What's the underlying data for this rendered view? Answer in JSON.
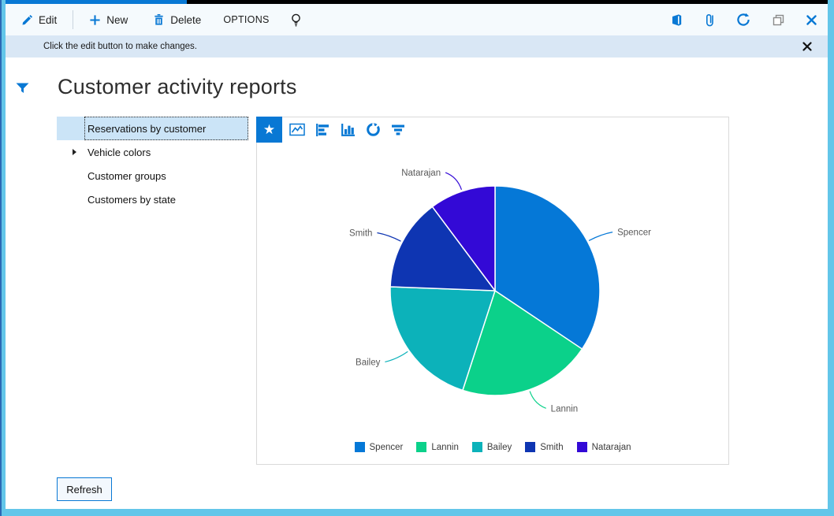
{
  "colors": {
    "accent": "#0878d4",
    "window_border": "#63c6e9",
    "top_strip_blue": "#0878d4",
    "top_strip_black": "#000000",
    "toolbar_bg": "#f5fafd",
    "infobar_bg": "#d9e7f5",
    "selected_row_bg": "#cbe4f7"
  },
  "toolbar": {
    "edit_label": "Edit",
    "new_label": "New",
    "delete_label": "Delete",
    "options_label": "OPTIONS",
    "left_icons": [
      "pencil-icon",
      "plus-icon",
      "trash-icon",
      "lightbulb-icon"
    ],
    "right_icons": [
      "office-icon",
      "paperclip-icon",
      "refresh-icon",
      "restore-window-icon",
      "close-icon"
    ]
  },
  "notification": {
    "message": "Click the edit button to make changes.",
    "close_icon": "close-icon"
  },
  "page": {
    "title": "Customer activity reports",
    "filter_icon": "filter-funnel-icon"
  },
  "report_list": {
    "items": [
      {
        "label": "Reservations by customer",
        "selected": true,
        "expandable": false
      },
      {
        "label": "Vehicle colors",
        "selected": false,
        "expandable": true
      },
      {
        "label": "Customer groups",
        "selected": false,
        "expandable": false
      },
      {
        "label": "Customers by state",
        "selected": false,
        "expandable": false
      }
    ]
  },
  "chart_toolbar": {
    "icons": [
      "favorite-star-icon",
      "line-chart-icon",
      "bar-chart-icon",
      "column-chart-icon",
      "donut-chart-icon",
      "funnel-chart-icon"
    ],
    "selected": "favorite-star-icon",
    "star_glyph": "★"
  },
  "chart_data": {
    "type": "pie",
    "title": "Reservations by customer",
    "series": [
      {
        "name": "Spencer",
        "value": 34.4,
        "color": "#0578d7"
      },
      {
        "name": "Lannin",
        "value": 20.6,
        "color": "#0bd18a"
      },
      {
        "name": "Bailey",
        "value": 20.6,
        "color": "#0cb2ba"
      },
      {
        "name": "Smith",
        "value": 14.2,
        "color": "#0e35b2"
      },
      {
        "name": "Natarajan",
        "value": 10.2,
        "color": "#3309d6"
      }
    ],
    "legend_position": "bottom",
    "labels_outside": true,
    "label_color": "#595959"
  },
  "refresh_button": {
    "label": "Refresh"
  }
}
